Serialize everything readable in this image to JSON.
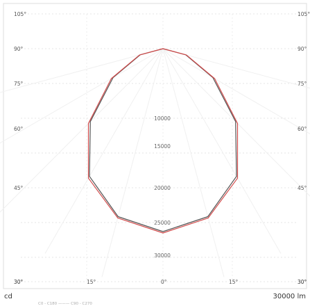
{
  "chart_data": {
    "type": "polar",
    "title": "",
    "angle_unit": "°",
    "left_angle_labels": [
      "105°",
      "90°",
      "75°",
      "60°",
      "45°",
      "30°"
    ],
    "right_angle_labels": [
      "105°",
      "90°",
      "75°",
      "60°",
      "45°",
      "30°"
    ],
    "bottom_angle_labels": [
      "30°",
      "15°",
      "0°",
      "15°",
      "30°"
    ],
    "radial_labels": [
      "10000",
      "15000",
      "20000",
      "25000",
      "30000"
    ],
    "radial_range": [
      0,
      30000
    ],
    "left_unit": "cd",
    "right_unit": "30000 lm",
    "footnote": "C0 - C180 ——— C90 - C270",
    "grid": true,
    "series": [
      {
        "color": "#555555",
        "points": [
          {
            "angle": 0,
            "value": 26300
          },
          {
            "angle": 15,
            "value": 25000
          },
          {
            "angle": 30,
            "value": 21200
          },
          {
            "angle": 45,
            "value": 14800
          },
          {
            "angle": 60,
            "value": 8300
          },
          {
            "angle": 75,
            "value": 3400
          },
          {
            "angle": 90,
            "value": 0
          }
        ]
      },
      {
        "color": "#d24b4b",
        "points": [
          {
            "angle": 0,
            "value": 26500
          },
          {
            "angle": 15,
            "value": 25200
          },
          {
            "angle": 30,
            "value": 21500
          },
          {
            "angle": 45,
            "value": 15200
          },
          {
            "angle": 60,
            "value": 8600
          },
          {
            "angle": 75,
            "value": 3500
          },
          {
            "angle": 90,
            "value": 0
          }
        ]
      }
    ]
  }
}
